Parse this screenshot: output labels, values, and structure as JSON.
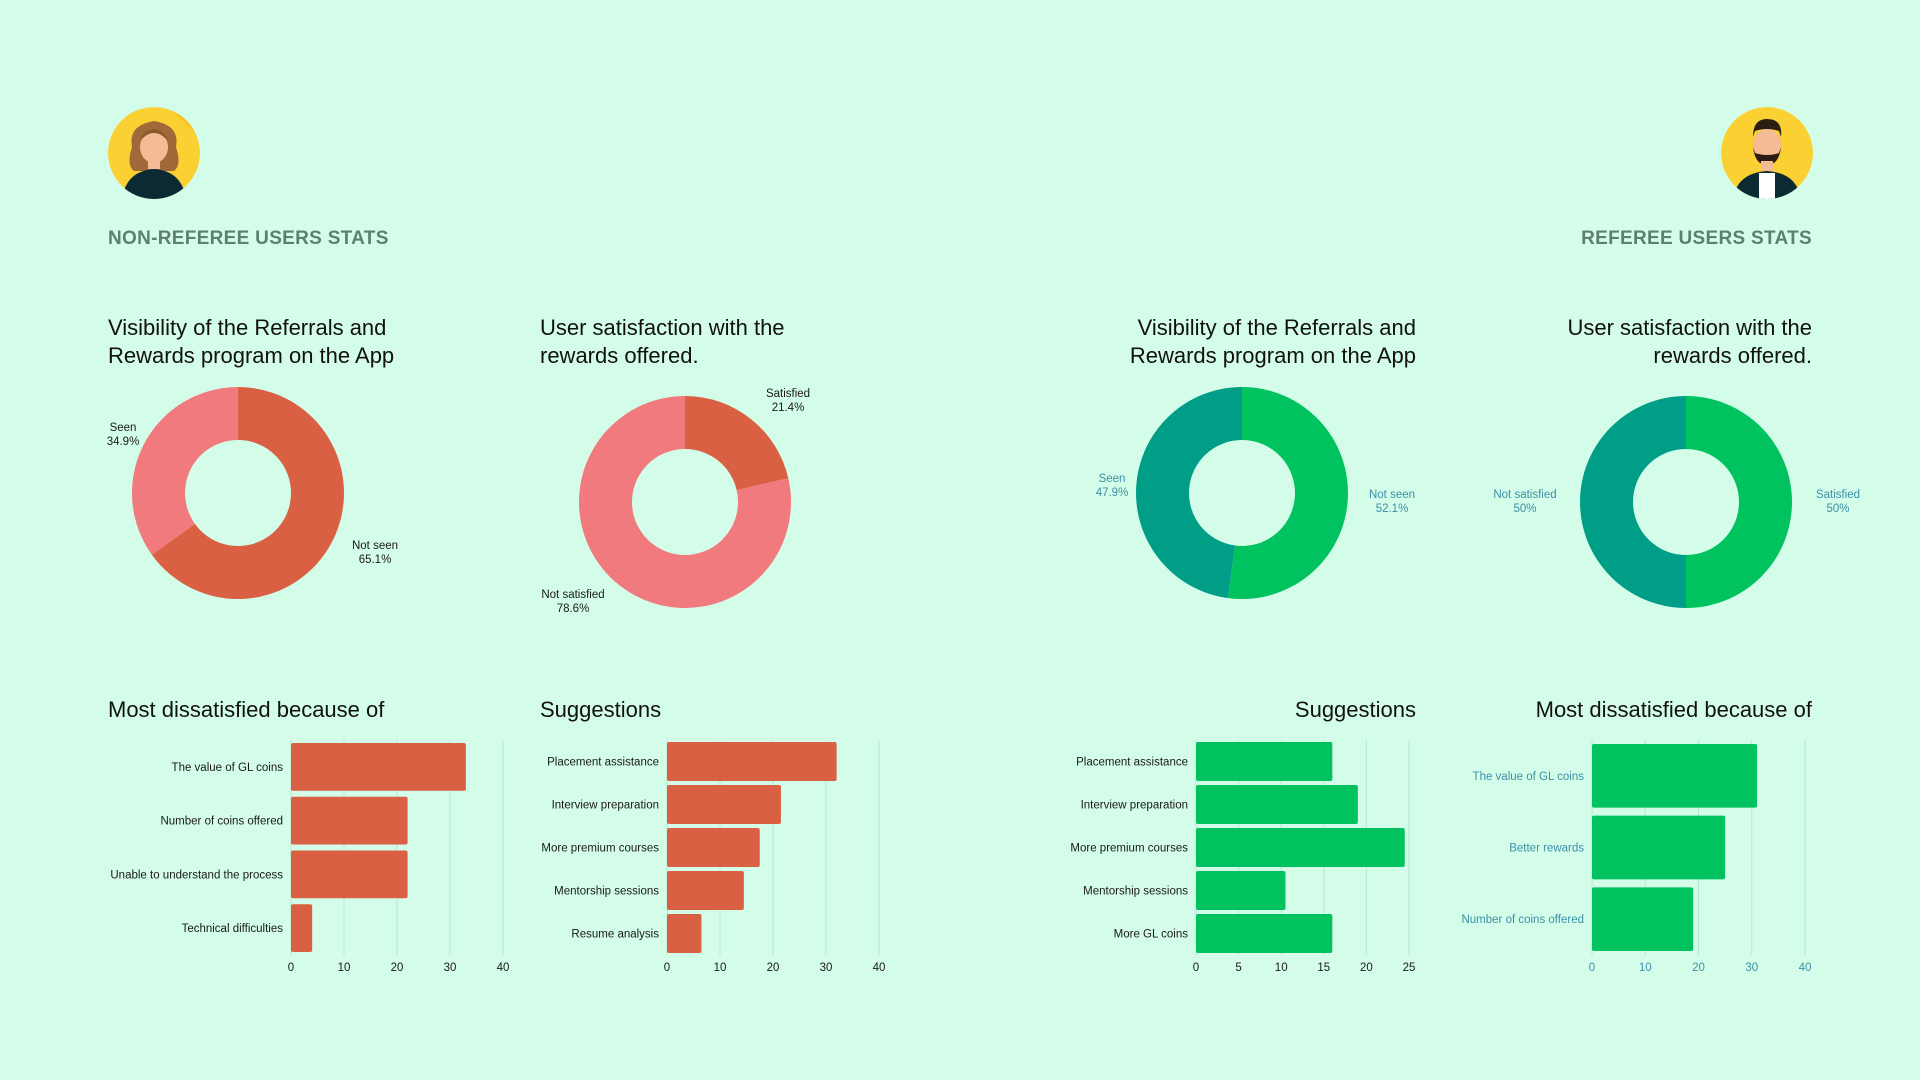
{
  "colors": {
    "background": "#d4fde9",
    "dark_orange": "#d96042",
    "pink": "#f07a7e",
    "green": "#00c25e",
    "teal": "#009d87",
    "muted_text": "#5f7f6e",
    "teal_text": "#3c8fa8"
  },
  "left_section": {
    "title": "NON-REFEREE USERS STATS",
    "avatar_icon": "woman-avatar-icon",
    "visibility_title_line1": "Visibility of the Referrals and",
    "visibility_title_line2": "Rewards program on the App",
    "satisfaction_title_line1": "User satisfaction with the",
    "satisfaction_title_line2": "rewards offered.",
    "dissatisfied_title": "Most dissatisfied because of",
    "suggestions_title": "Suggestions"
  },
  "right_section": {
    "title": "REFEREE USERS STATS",
    "avatar_icon": "man-avatar-icon",
    "visibility_title_line1": "Visibility of the Referrals and",
    "visibility_title_line2": "Rewards program on the App",
    "satisfaction_title_line1": "User satisfaction with the",
    "satisfaction_title_line2": "rewards offered.",
    "suggestions_title": "Suggestions",
    "dissatisfied_title": "Most dissatisfied because of"
  },
  "chart_data": [
    {
      "id": "nr_visibility",
      "type": "pie",
      "title": "Visibility of the Referrals and Rewards program on the App",
      "slices": [
        {
          "label": "Not seen",
          "value": 65.1,
          "pct_label": "65.1%",
          "color": "#d96042"
        },
        {
          "label": "Seen",
          "value": 34.9,
          "pct_label": "34.9%",
          "color": "#f07a7e"
        }
      ]
    },
    {
      "id": "nr_satisfaction",
      "type": "pie",
      "title": "User satisfaction with the rewards offered.",
      "slices": [
        {
          "label": "Satisfied",
          "value": 21.4,
          "pct_label": "21.4%",
          "color": "#d96042"
        },
        {
          "label": "Not satisfied",
          "value": 78.6,
          "pct_label": "78.6%",
          "color": "#f07a7e"
        }
      ]
    },
    {
      "id": "r_visibility",
      "type": "pie",
      "title": "Visibility of the Referrals and Rewards program on the App",
      "slices": [
        {
          "label": "Not seen",
          "value": 52.1,
          "pct_label": "52.1%",
          "color": "#00c25e"
        },
        {
          "label": "Seen",
          "value": 47.9,
          "pct_label": "47.9%",
          "color": "#009d87"
        }
      ]
    },
    {
      "id": "r_satisfaction",
      "type": "pie",
      "title": "User satisfaction with the rewards offered.",
      "slices": [
        {
          "label": "Satisfied",
          "value": 50,
          "pct_label": "50%",
          "color": "#00c25e"
        },
        {
          "label": "Not satisfied",
          "value": 50,
          "pct_label": "50%",
          "color": "#009d87"
        }
      ]
    },
    {
      "id": "nr_dissatisfied",
      "type": "bar",
      "orientation": "horizontal",
      "title": "Most dissatisfied because of",
      "categories": [
        "The value of GL coins",
        "Number of coins offered",
        "Unable to understand the process",
        "Technical difficulties"
      ],
      "values": [
        33,
        22,
        22,
        4
      ],
      "xlim": [
        0,
        40
      ],
      "ticks": [
        0,
        10,
        20,
        30,
        40
      ],
      "color": "#d96042"
    },
    {
      "id": "nr_suggestions",
      "type": "bar",
      "orientation": "horizontal",
      "title": "Suggestions",
      "categories": [
        "Placement assistance",
        "Interview preparation",
        "More premium courses",
        "Mentorship sessions",
        "Resume analysis"
      ],
      "values": [
        32,
        21.5,
        17.5,
        14.5,
        6.5
      ],
      "xlim": [
        0,
        40
      ],
      "ticks": [
        0,
        10,
        20,
        30,
        40
      ],
      "color": "#d96042"
    },
    {
      "id": "r_suggestions",
      "type": "bar",
      "orientation": "horizontal",
      "title": "Suggestions",
      "categories": [
        "Placement assistance",
        "Interview preparation",
        "More premium courses",
        "Mentorship sessions",
        "More GL coins"
      ],
      "values": [
        16,
        19,
        24.5,
        10.5,
        16
      ],
      "xlim": [
        0,
        25
      ],
      "ticks": [
        0,
        5,
        10,
        15,
        20,
        25
      ],
      "color": "#00c25e"
    },
    {
      "id": "r_dissatisfied",
      "type": "bar",
      "orientation": "horizontal",
      "title": "Most dissatisfied because of",
      "categories": [
        "The value of GL coins",
        "Better rewards",
        "Number of coins offered"
      ],
      "values": [
        31,
        25,
        19
      ],
      "xlim": [
        0,
        40
      ],
      "ticks": [
        0,
        10,
        20,
        30,
        40
      ],
      "color": "#00c25e"
    }
  ]
}
